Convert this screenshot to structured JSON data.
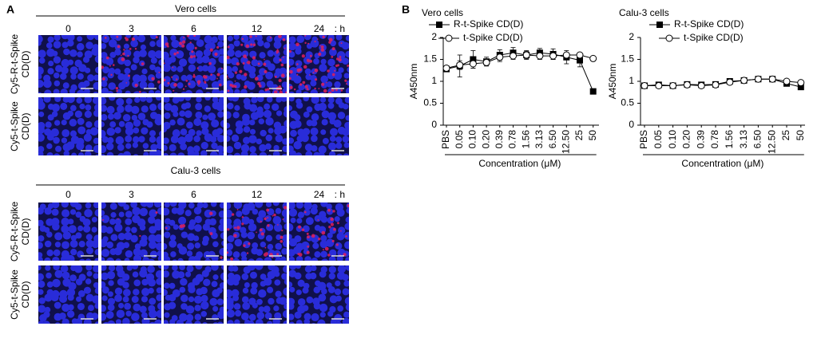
{
  "panel_labels": [
    "A",
    "B"
  ],
  "panel_a": {
    "groups": [
      {
        "title": "Vero cells",
        "times": [
          "0",
          "3",
          "6",
          "12",
          "24"
        ],
        "time_unit": ": h",
        "rows": [
          [
            "Cy5-R-t-Spike",
            "CD(D)"
          ],
          [
            "Cy5-t-Spike",
            "CD(D)"
          ]
        ]
      },
      {
        "title": "Calu-3 cells",
        "times": [
          "0",
          "3",
          "6",
          "12",
          "24"
        ],
        "time_unit": ": h",
        "rows": [
          [
            "Cy5-R-t-Spike",
            "CD(D)"
          ],
          [
            "Cy5-t-Spike",
            "CD(D)"
          ]
        ]
      }
    ]
  },
  "chart_data": [
    {
      "type": "line",
      "title": "Vero cells",
      "x_label": "Concentration (μM)",
      "y_label": "A450nm",
      "categories": [
        "PBS",
        "0.05",
        "0.10",
        "0.20",
        "0.39",
        "0.78",
        "1.56",
        "3.13",
        "6.50",
        "12.50",
        "25",
        "50"
      ],
      "ylim": [
        0,
        2
      ],
      "yticks": [
        0,
        0.5,
        1,
        1.5,
        2
      ],
      "legend": "top-left",
      "series": [
        {
          "name": "R-t-Spike CD(D)",
          "color": "#000000",
          "marker": "square",
          "values": [
            1.28,
            1.35,
            1.5,
            1.45,
            1.6,
            1.65,
            1.6,
            1.65,
            1.62,
            1.55,
            1.48,
            0.77
          ],
          "errors": [
            0.05,
            0.25,
            0.2,
            0.1,
            0.12,
            0.12,
            0.1,
            0.1,
            0.12,
            0.15,
            0.15,
            0.03
          ]
        },
        {
          "name": "t-Spike CD(D)",
          "color": "#000000",
          "marker": "circle",
          "values": [
            1.3,
            1.37,
            1.4,
            1.43,
            1.55,
            1.58,
            1.6,
            1.58,
            1.58,
            1.6,
            1.6,
            1.52
          ],
          "errors": [
            0.05,
            0.1,
            0.1,
            0.08,
            0.1,
            0.08,
            0.08,
            0.08,
            0.08,
            0.05,
            0.05,
            0.03
          ]
        }
      ]
    },
    {
      "type": "line",
      "title": "Calu-3 cells",
      "x_label": "Concentration (μM)",
      "y_label": "A450nm",
      "categories": [
        "PBS",
        "0.05",
        "0.10",
        "0.20",
        "0.39",
        "0.78",
        "1.56",
        "3.13",
        "6.50",
        "12.50",
        "25",
        "50"
      ],
      "ylim": [
        0,
        2
      ],
      "yticks": [
        0,
        0.5,
        1,
        1.5,
        2
      ],
      "legend": "top-left",
      "series": [
        {
          "name": "R-t-Spike CD(D)",
          "color": "#000000",
          "marker": "square",
          "values": [
            0.9,
            0.92,
            0.9,
            0.93,
            0.92,
            0.93,
            1.0,
            1.02,
            1.05,
            1.05,
            0.95,
            0.87
          ],
          "errors": [
            0.03,
            0.03,
            0.03,
            0.03,
            0.03,
            0.04,
            0.06,
            0.04,
            0.06,
            0.06,
            0.04,
            0.04
          ]
        },
        {
          "name": "t-Spike CD(D)",
          "color": "#000000",
          "marker": "circle",
          "values": [
            0.9,
            0.9,
            0.9,
            0.92,
            0.9,
            0.92,
            0.98,
            1.02,
            1.05,
            1.05,
            1.0,
            0.97
          ],
          "errors": [
            0.03,
            0.03,
            0.03,
            0.03,
            0.03,
            0.03,
            0.04,
            0.04,
            0.05,
            0.05,
            0.03,
            0.03
          ]
        }
      ]
    }
  ]
}
